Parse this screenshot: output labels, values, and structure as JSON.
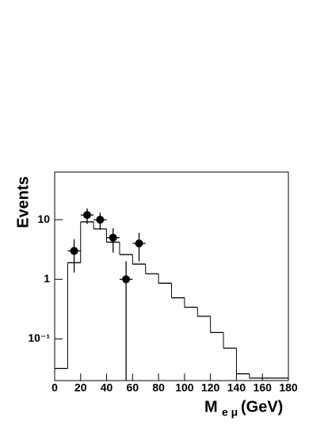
{
  "chart_data": {
    "type": "histogram",
    "ylabel": "Events",
    "xlabel": "M",
    "xlabel_sub": "e μ",
    "xlabel_unit": "(GeV)",
    "bins": [
      0,
      10,
      20,
      30,
      40,
      50,
      60,
      70,
      80,
      90,
      100,
      110,
      120,
      130,
      140,
      150,
      160,
      170,
      180
    ],
    "counts": [
      0.032,
      1.9,
      9.2,
      7.0,
      4.2,
      2.6,
      1.8,
      1.24,
      0.86,
      0.49,
      0.34,
      0.24,
      0.128,
      0.07,
      0.026,
      0.022,
      0.022,
      0.022
    ],
    "color": "#000000",
    "points": {
      "x": [
        15,
        25,
        35,
        45,
        55,
        65
      ],
      "values": [
        3,
        12,
        10,
        5,
        1,
        4
      ],
      "errors": [
        1.7,
        3.5,
        3.2,
        2.2,
        1,
        2
      ],
      "xerr": 5,
      "color": "#000000"
    },
    "xlim": [
      0,
      180
    ],
    "xticks": [
      0,
      20,
      40,
      60,
      80,
      100,
      120,
      140,
      160,
      180
    ],
    "ylim": [
      0.02,
      63
    ],
    "yticks": [
      {
        "value": 0.1,
        "label": "10⁻¹"
      },
      1,
      10
    ],
    "log_y": true
  }
}
